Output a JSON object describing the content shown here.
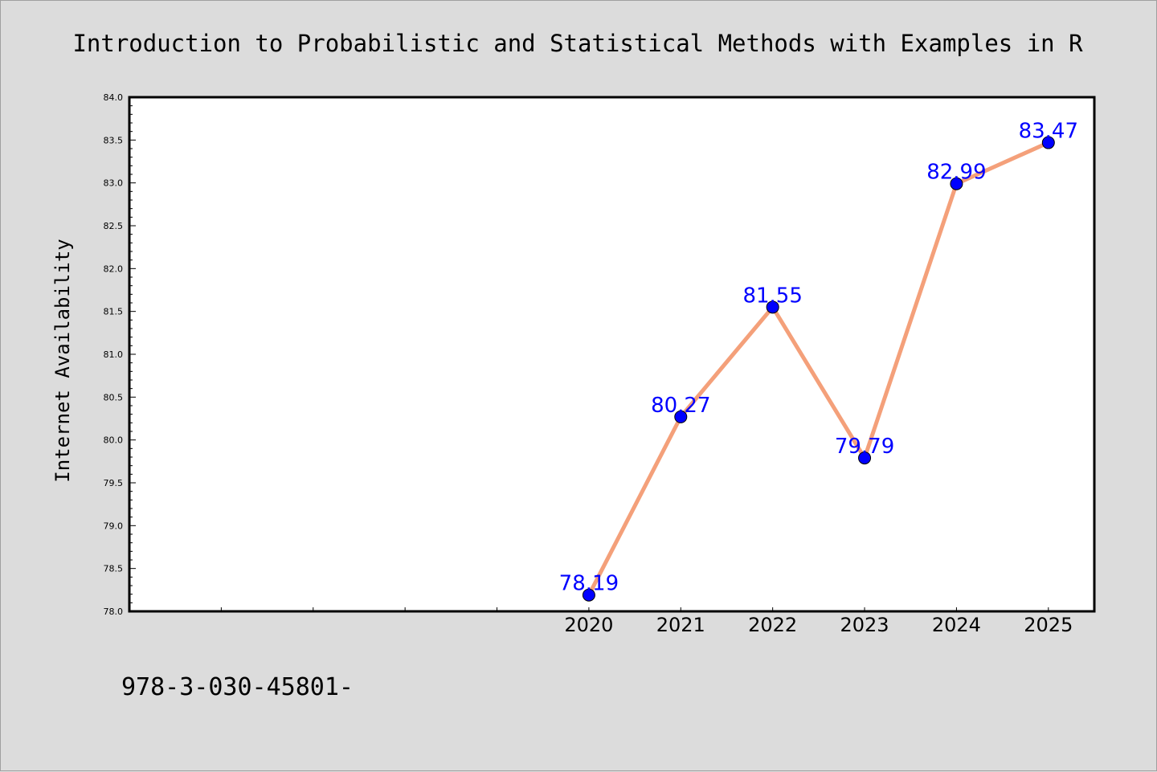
{
  "chart_data": {
    "type": "line",
    "title": "Introduction to Probabilistic and Statistical Methods with Examples in R",
    "ylabel": "Internet Availability",
    "xlabel": "",
    "x": [
      2020,
      2021,
      2022,
      2023,
      2024,
      2025
    ],
    "x_range": [
      2015,
      2025.5
    ],
    "series": [
      {
        "values": [
          78.19,
          80.27,
          81.55,
          79.79,
          82.99,
          83.47
        ]
      }
    ],
    "data_labels": [
      "78.19",
      "80.27",
      "81.55",
      "79.79",
      "82.99",
      "83.47"
    ],
    "ylim": [
      78.0,
      84.0
    ],
    "y_ticks": [
      "78.0",
      "78.5",
      "79.0",
      "79.5",
      "80.0",
      "80.5",
      "81.0",
      "81.5",
      "82.0",
      "82.5",
      "83.0",
      "83.5",
      "84.0"
    ],
    "x_tick_labels": [
      "2020",
      "2021",
      "2022",
      "2023",
      "2024",
      "2025"
    ],
    "grid": false,
    "line_color": "#f4a07a",
    "marker_color": "#0000ff",
    "label_color": "#0000ff",
    "background_color": "#dcdcdc",
    "plot_background": "#ffffff"
  },
  "annotation": "978-3-030-45801-"
}
